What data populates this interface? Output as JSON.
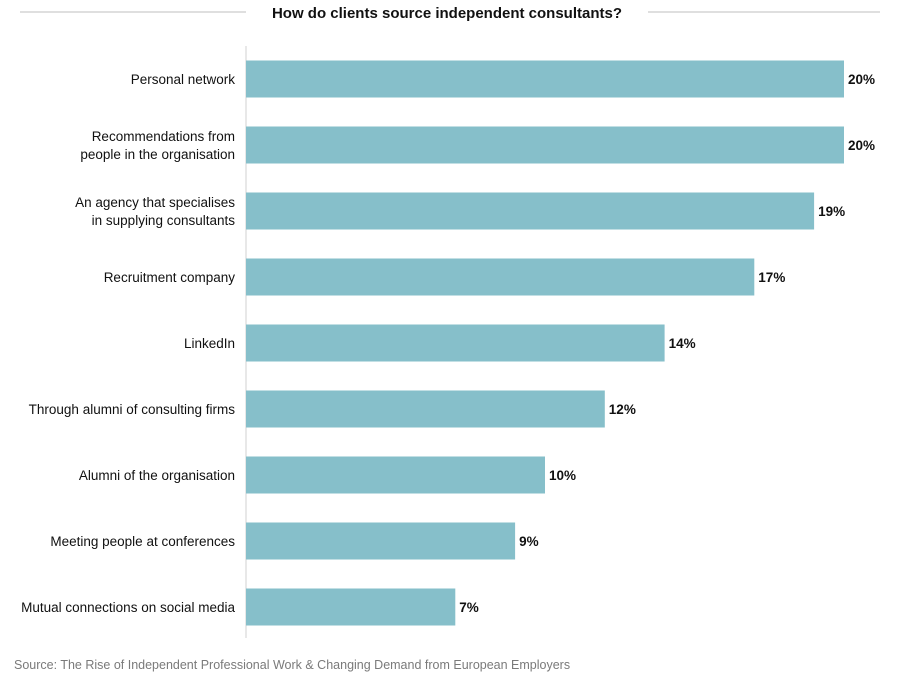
{
  "chart_data": {
    "type": "bar",
    "orientation": "horizontal",
    "title": "How do clients source independent consultants?",
    "source": "Source: The Rise of Independent Professional Work & Changing Demand from European Employers",
    "categories": [
      "Personal network",
      "Recommendations from\npeople in the organisation",
      "An agency that specialises\nin supplying consultants",
      "Recruitment company",
      "LinkedIn",
      "Through alumni of consulting firms",
      "Alumni of the organisation",
      "Meeting people at conferences",
      "Mutual connections on social media"
    ],
    "values": [
      20,
      20,
      19,
      17,
      14,
      12,
      10,
      9,
      7
    ],
    "value_labels": [
      "20%",
      "20%",
      "19%",
      "17%",
      "14%",
      "12%",
      "10%",
      "9%",
      "7%"
    ],
    "xlim": [
      0,
      20
    ],
    "grid": false,
    "bar_color": "#86bfca",
    "title_rule_color": "#bfbfbf",
    "axis_color": "#d0d0d0"
  }
}
